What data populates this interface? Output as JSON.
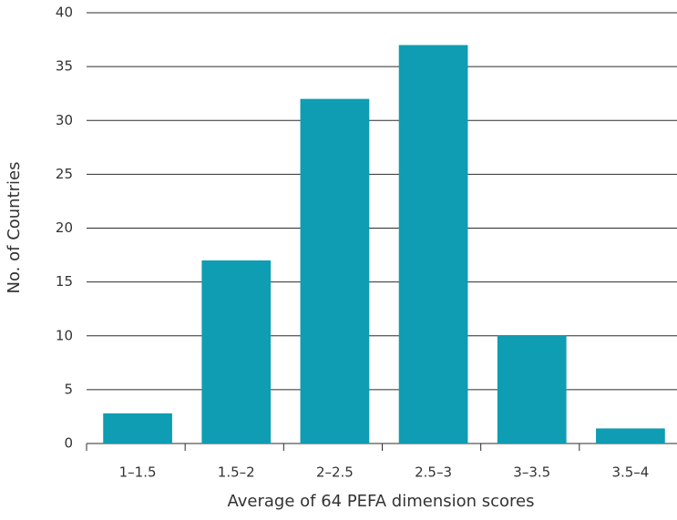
{
  "chart_data": {
    "type": "bar",
    "x_label": "Average of 64 PEFA dimension scores",
    "y_label": "No. of Countries",
    "categories": [
      "1–1.5",
      "1.5–2",
      "2–2.5",
      "2.5–3",
      "3–3.5",
      "3.5–4"
    ],
    "values": [
      2.8,
      17,
      32,
      37,
      10,
      1.4
    ],
    "color": "#0e9db2",
    "ylim": [
      0,
      40
    ],
    "yticks": [
      0,
      5,
      10,
      15,
      20,
      25,
      30,
      35,
      40
    ],
    "grid": true
  }
}
